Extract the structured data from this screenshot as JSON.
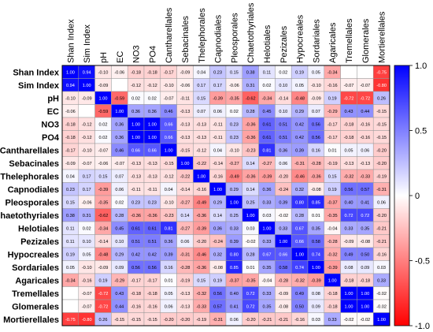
{
  "chart_data": {
    "type": "heatmap",
    "title": "",
    "labels": [
      "Shan Index",
      "Sim Index",
      "pH",
      "EC",
      "NO3",
      "PO4",
      "Cantharellales",
      "Sebacinales",
      "Thelephorales",
      "Capnodiales",
      "Pleosporales",
      "Chaetothyriales",
      "Helotiales",
      "Pezizales",
      "Hypocreales",
      "Sordariales",
      "Agaricales",
      "Tremellales",
      "Glomerales",
      "Mortierellales"
    ],
    "values": [
      [
        1.0,
        0.94,
        -0.1,
        -0.06,
        -0.18,
        -0.18,
        -0.17,
        -0.09,
        0.04,
        0.23,
        0.15,
        0.38,
        0.11,
        0.02,
        0.19,
        0.05,
        -0.34,
        null,
        null,
        -0.75
      ],
      [
        0.94,
        1.0,
        -0.09,
        null,
        -0.12,
        -0.12,
        -0.1,
        -0.06,
        0.17,
        0.17,
        -0.06,
        0.31,
        0.02,
        0.1,
        0.05,
        -0.1,
        -0.16,
        -0.07,
        -0.07,
        -0.8
      ],
      [
        -0.1,
        -0.09,
        1.0,
        -0.59,
        0.02,
        0.02,
        -0.07,
        -0.11,
        0.15,
        -0.39,
        -0.35,
        -0.62,
        -0.34,
        -0.14,
        -0.48,
        -0.09,
        0.19,
        -0.72,
        -0.72,
        0.26
      ],
      [
        -0.06,
        null,
        -0.59,
        1.0,
        0.36,
        0.36,
        0.46,
        -0.13,
        0.07,
        0.06,
        0.02,
        0.28,
        0.45,
        0.1,
        0.29,
        0.07,
        -0.29,
        0.43,
        0.44,
        -0.15
      ],
      [
        -0.18,
        -0.12,
        0.02,
        0.36,
        1.0,
        1.0,
        0.66,
        -0.13,
        -0.13,
        -0.11,
        0.23,
        -0.36,
        0.61,
        0.51,
        0.42,
        0.56,
        -0.17,
        -0.18,
        -0.16,
        -0.15
      ],
      [
        -0.18,
        -0.12,
        0.02,
        0.36,
        1.0,
        1.0,
        0.66,
        -0.13,
        -0.13,
        -0.11,
        0.23,
        -0.36,
        0.61,
        0.51,
        0.42,
        0.56,
        -0.17,
        -0.18,
        -0.16,
        -0.15
      ],
      [
        -0.17,
        -0.1,
        -0.07,
        0.46,
        0.66,
        0.66,
        1.0,
        -0.15,
        -0.12,
        0.04,
        -0.1,
        -0.23,
        0.81,
        0.36,
        0.39,
        0.16,
        0.01,
        0.05,
        0.06,
        -0.2
      ],
      [
        -0.09,
        -0.07,
        -0.06,
        -0.07,
        -0.13,
        -0.13,
        -0.15,
        1.0,
        -0.22,
        -0.14,
        -0.27,
        0.14,
        -0.27,
        0.06,
        -0.31,
        -0.28,
        -0.19,
        -0.13,
        -0.13,
        -0.2
      ],
      [
        0.04,
        0.17,
        0.15,
        0.07,
        -0.13,
        -0.13,
        -0.12,
        -0.22,
        1.0,
        -0.16,
        -0.49,
        -0.36,
        -0.39,
        -0.2,
        -0.46,
        -0.36,
        0.15,
        -0.32,
        -0.33,
        -0.19
      ],
      [
        0.23,
        0.17,
        -0.39,
        0.06,
        -0.11,
        -0.11,
        0.04,
        -0.14,
        -0.16,
        1.0,
        0.29,
        0.14,
        0.36,
        -0.24,
        0.32,
        -0.08,
        0.19,
        0.56,
        0.57,
        -0.31
      ],
      [
        0.15,
        -0.06,
        -0.35,
        0.02,
        0.23,
        0.23,
        -0.1,
        -0.27,
        -0.49,
        0.29,
        1.0,
        0.25,
        0.33,
        0.39,
        0.8,
        0.85,
        -0.37,
        0.4,
        0.41,
        0.06
      ],
      [
        0.38,
        0.31,
        -0.62,
        0.28,
        -0.36,
        -0.36,
        -0.23,
        0.14,
        -0.36,
        0.14,
        0.25,
        1.0,
        0.03,
        -0.02,
        0.28,
        0.01,
        -0.35,
        0.72,
        0.72,
        -0.2
      ],
      [
        0.11,
        0.02,
        -0.34,
        0.45,
        0.61,
        0.61,
        0.81,
        -0.27,
        -0.39,
        0.36,
        0.33,
        0.03,
        1.0,
        0.33,
        0.67,
        0.35,
        -0.04,
        0.33,
        0.35,
        -0.21
      ],
      [
        0.11,
        0.1,
        -0.14,
        0.1,
        0.51,
        0.51,
        0.36,
        0.06,
        -0.2,
        -0.24,
        0.39,
        -0.02,
        0.33,
        1.0,
        0.66,
        0.58,
        -0.28,
        -0.09,
        -0.08,
        -0.21
      ],
      [
        0.19,
        0.05,
        -0.48,
        0.29,
        0.42,
        0.42,
        0.39,
        -0.31,
        -0.46,
        0.32,
        0.8,
        0.28,
        0.67,
        0.66,
        1.0,
        0.74,
        -0.32,
        0.49,
        0.5,
        -0.16
      ],
      [
        0.05,
        -0.1,
        -0.09,
        0.09,
        0.56,
        0.56,
        0.16,
        -0.28,
        -0.36,
        -0.08,
        0.85,
        0.01,
        0.35,
        0.58,
        0.74,
        1.0,
        -0.39,
        0.08,
        0.09,
        0.03
      ],
      [
        -0.34,
        -0.16,
        0.19,
        -0.29,
        -0.17,
        -0.17,
        0.01,
        -0.19,
        0.15,
        0.19,
        -0.37,
        -0.35,
        -0.04,
        -0.28,
        -0.32,
        -0.39,
        1.0,
        -0.18,
        -0.18,
        0.33
      ],
      [
        null,
        -0.07,
        -0.72,
        0.43,
        -0.18,
        -0.18,
        0.05,
        -0.13,
        -0.32,
        0.56,
        0.4,
        0.72,
        0.33,
        -0.09,
        0.49,
        0.08,
        -0.18,
        1.0,
        1.0,
        -0.02
      ],
      [
        null,
        -0.07,
        -0.72,
        0.44,
        -0.16,
        -0.16,
        0.06,
        -0.13,
        -0.33,
        0.57,
        0.41,
        0.72,
        0.35,
        -0.08,
        0.5,
        0.09,
        -0.18,
        1.0,
        1.0,
        -0.02
      ],
      [
        -0.75,
        -0.8,
        0.26,
        -0.15,
        -0.15,
        -0.15,
        -0.2,
        -0.2,
        -0.19,
        -0.31,
        0.06,
        -0.2,
        -0.21,
        -0.21,
        -0.16,
        0.03,
        0.33,
        -0.02,
        -0.02,
        1.0
      ]
    ],
    "colorbar": {
      "ticks": [
        1.0,
        0.5,
        0,
        -0.5,
        -1.0
      ],
      "tick_labels": [
        "1.0",
        "0.5",
        "0",
        "-0.5",
        "-1.0"
      ],
      "range": [
        -1.0,
        1.0
      ]
    },
    "colors": {
      "high": "#0000ff",
      "mid": "#ffffff",
      "low": "#ff0000",
      "blank": "#ffffff",
      "grid": "#9a9a9a"
    },
    "legend_placement": "right"
  }
}
